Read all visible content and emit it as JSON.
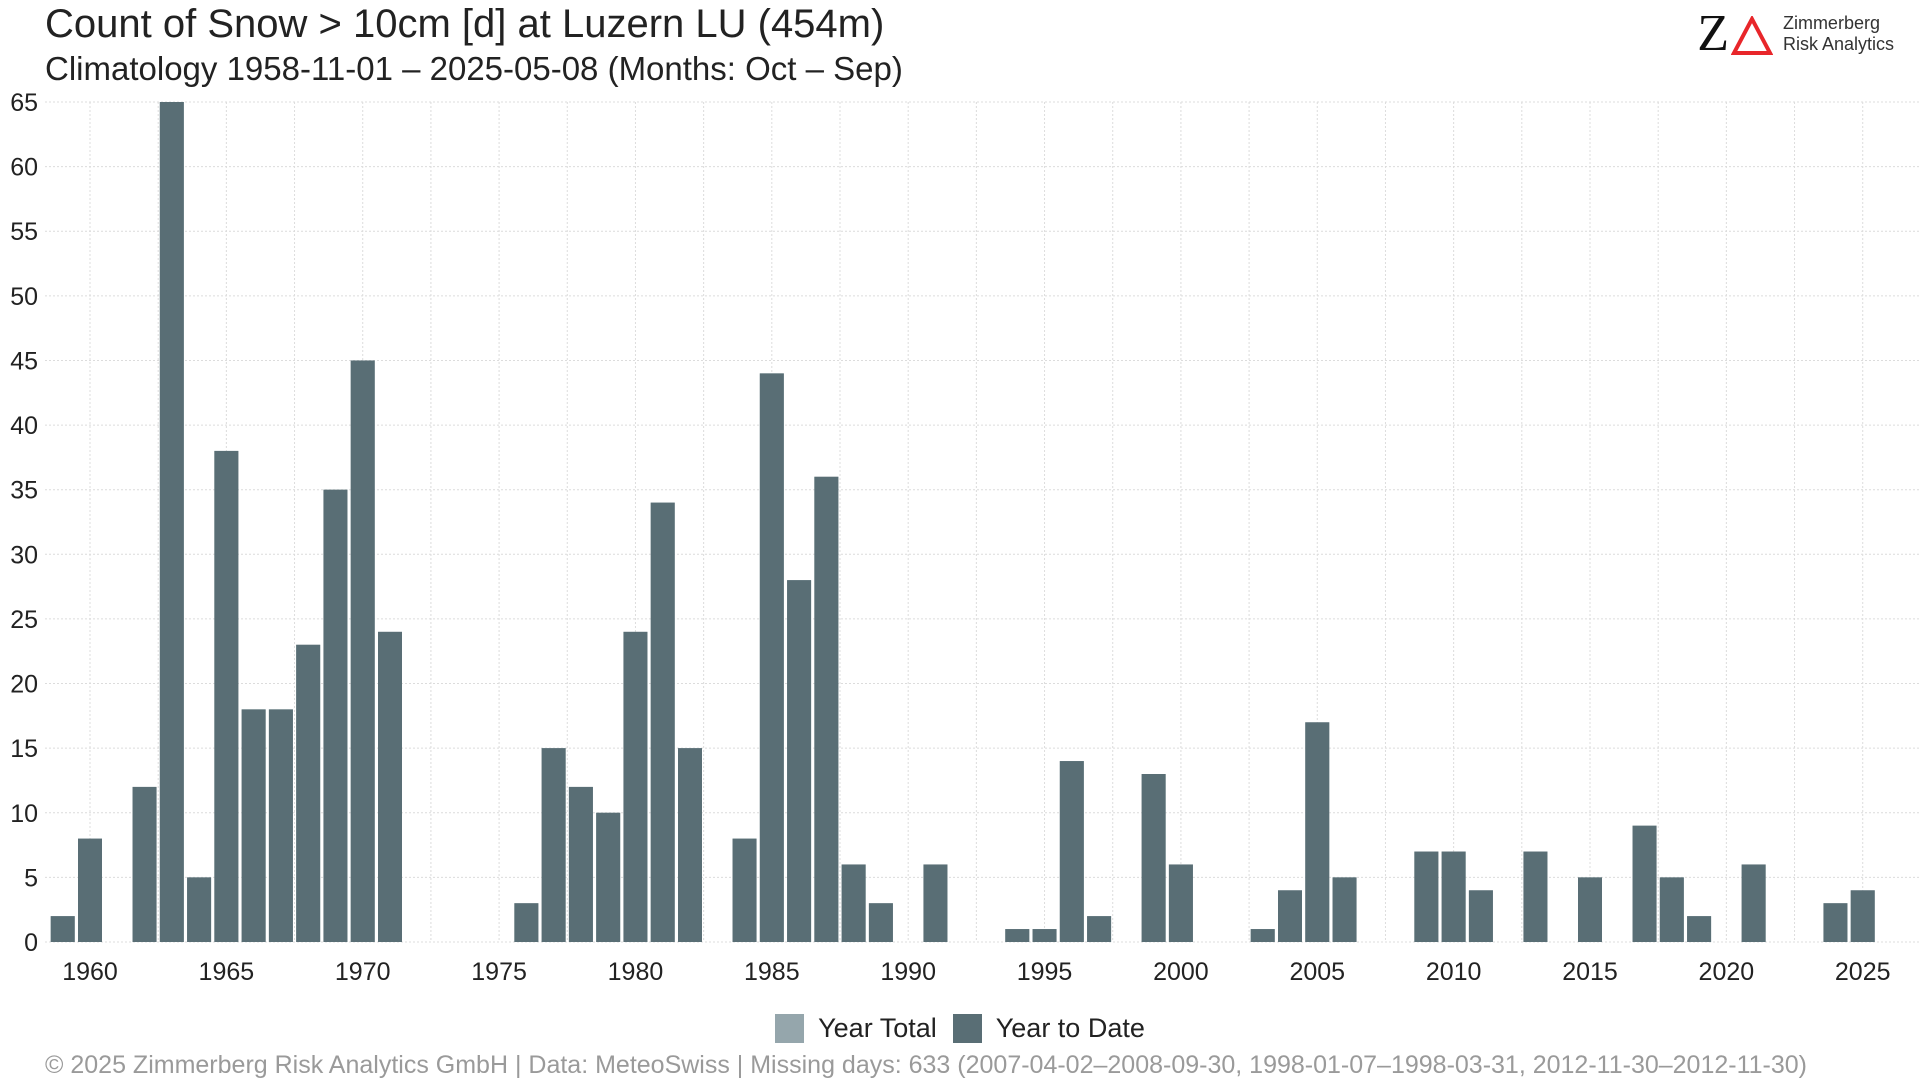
{
  "title": "Count of Snow > 10cm [d] at Luzern  LU (454m)",
  "subtitle": "Climatology 1958-11-01 – 2025-05-08 (Months: Oct – Sep)",
  "logo": {
    "line1": "Zimmerberg",
    "line2": "Risk Analytics",
    "mark": "Z"
  },
  "footer": "©  2025 Zimmerberg Risk Analytics GmbH | Data: MeteoSwiss | Missing days: 633 (2007-04-02–2008-09-30, 1998-01-07–1998-03-31, 2012-11-30–2012-11-30)",
  "colors": {
    "year_total": "#95a6ac",
    "year_to_date": "#596e75",
    "grid": "#dcdcdc",
    "logo_accent": "#e8262a"
  },
  "chart_data": {
    "type": "bar",
    "xlabel": "",
    "ylabel": "",
    "ylim": [
      0,
      65
    ],
    "y_ticks": [
      0,
      5,
      10,
      15,
      20,
      25,
      30,
      35,
      40,
      45,
      50,
      55,
      60,
      65
    ],
    "x_ticks": [
      1960,
      1965,
      1970,
      1975,
      1980,
      1985,
      1990,
      1995,
      2000,
      2005,
      2010,
      2015,
      2020,
      2025
    ],
    "x": [
      1959,
      1960,
      1961,
      1962,
      1963,
      1964,
      1965,
      1966,
      1967,
      1968,
      1969,
      1970,
      1971,
      1972,
      1973,
      1974,
      1975,
      1976,
      1977,
      1978,
      1979,
      1980,
      1981,
      1982,
      1983,
      1984,
      1985,
      1986,
      1987,
      1988,
      1989,
      1990,
      1991,
      1992,
      1993,
      1994,
      1995,
      1996,
      1997,
      1998,
      1999,
      2000,
      2001,
      2002,
      2003,
      2004,
      2005,
      2006,
      2007,
      2008,
      2009,
      2010,
      2011,
      2012,
      2013,
      2014,
      2015,
      2016,
      2017,
      2018,
      2019,
      2020,
      2021,
      2022,
      2023,
      2024,
      2025
    ],
    "grid": true,
    "legend_position": "bottom",
    "series": [
      {
        "name": "Year Total",
        "color": "#95a6ac",
        "values": [
          2,
          8,
          0,
          12,
          65,
          5,
          38,
          18,
          18,
          23,
          35,
          45,
          24,
          0,
          0,
          0,
          0,
          3,
          15,
          12,
          10,
          24,
          34,
          15,
          0,
          8,
          44,
          28,
          36,
          6,
          3,
          0,
          6,
          0,
          0,
          1,
          1,
          14,
          2,
          0,
          13,
          6,
          0,
          0,
          1,
          4,
          17,
          5,
          0,
          0,
          7,
          7,
          4,
          0,
          7,
          0,
          5,
          0,
          9,
          5,
          2,
          0,
          6,
          0,
          0,
          3,
          4
        ]
      },
      {
        "name": "Year to Date",
        "color": "#596e75",
        "values": [
          2,
          8,
          0,
          12,
          65,
          5,
          38,
          18,
          18,
          23,
          35,
          45,
          24,
          0,
          0,
          0,
          0,
          3,
          15,
          12,
          10,
          24,
          34,
          15,
          0,
          8,
          44,
          28,
          36,
          6,
          3,
          0,
          6,
          0,
          0,
          1,
          1,
          14,
          2,
          0,
          13,
          6,
          0,
          0,
          1,
          4,
          17,
          5,
          0,
          0,
          7,
          7,
          4,
          0,
          7,
          0,
          5,
          0,
          9,
          5,
          2,
          0,
          6,
          0,
          0,
          3,
          4
        ]
      }
    ]
  }
}
